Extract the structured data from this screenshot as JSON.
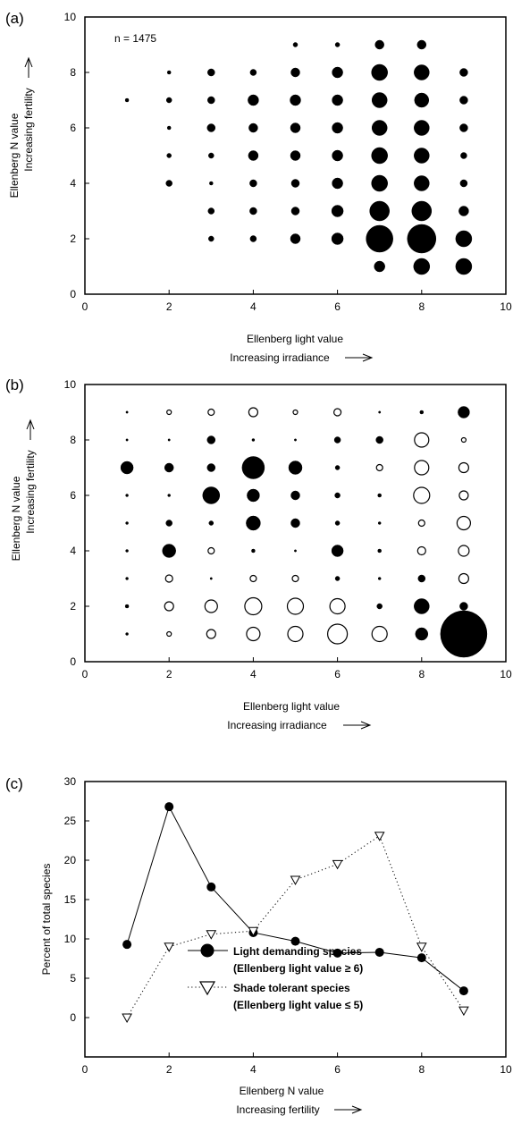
{
  "chart_data": [
    {
      "type": "scatter",
      "panel_label": "(a)",
      "annotation": "n = 1475",
      "xlabel": "Ellenberg light value",
      "xlabel2": "Increasing irradiance",
      "ylabel": "Ellenberg N value",
      "ylabel2": "Increasing fertility",
      "xlim": [
        0,
        10
      ],
      "ylim": [
        0,
        10
      ],
      "xticks": [
        "0",
        "2",
        "4",
        "6",
        "8",
        "10"
      ],
      "yticks": [
        "0",
        "2",
        "4",
        "6",
        "8",
        "10"
      ],
      "points": [
        {
          "x": 1,
          "y": 7,
          "size": 2,
          "fill": "filled"
        },
        {
          "x": 2,
          "y": 8,
          "size": 2,
          "fill": "filled"
        },
        {
          "x": 2,
          "y": 7,
          "size": 3,
          "fill": "filled"
        },
        {
          "x": 2,
          "y": 6,
          "size": 2,
          "fill": "filled"
        },
        {
          "x": 2,
          "y": 5,
          "size": 2.5,
          "fill": "filled"
        },
        {
          "x": 2,
          "y": 4,
          "size": 3.5,
          "fill": "filled"
        },
        {
          "x": 3,
          "y": 8,
          "size": 4,
          "fill": "filled"
        },
        {
          "x": 3,
          "y": 7,
          "size": 4,
          "fill": "filled"
        },
        {
          "x": 3,
          "y": 6,
          "size": 4.5,
          "fill": "filled"
        },
        {
          "x": 3,
          "y": 5,
          "size": 3,
          "fill": "filled"
        },
        {
          "x": 3,
          "y": 4,
          "size": 2,
          "fill": "filled"
        },
        {
          "x": 3,
          "y": 3,
          "size": 3.5,
          "fill": "filled"
        },
        {
          "x": 3,
          "y": 2,
          "size": 3,
          "fill": "filled"
        },
        {
          "x": 4,
          "y": 8,
          "size": 3.5,
          "fill": "filled"
        },
        {
          "x": 4,
          "y": 7,
          "size": 6,
          "fill": "filled"
        },
        {
          "x": 4,
          "y": 6,
          "size": 5,
          "fill": "filled"
        },
        {
          "x": 4,
          "y": 5,
          "size": 5.5,
          "fill": "filled"
        },
        {
          "x": 4,
          "y": 4,
          "size": 4,
          "fill": "filled"
        },
        {
          "x": 4,
          "y": 3,
          "size": 4,
          "fill": "filled"
        },
        {
          "x": 4,
          "y": 2,
          "size": 3.5,
          "fill": "filled"
        },
        {
          "x": 5,
          "y": 9,
          "size": 2.5,
          "fill": "filled"
        },
        {
          "x": 5,
          "y": 8,
          "size": 5,
          "fill": "filled"
        },
        {
          "x": 5,
          "y": 7,
          "size": 6,
          "fill": "filled"
        },
        {
          "x": 5,
          "y": 6,
          "size": 5.5,
          "fill": "filled"
        },
        {
          "x": 5,
          "y": 5,
          "size": 5.5,
          "fill": "filled"
        },
        {
          "x": 5,
          "y": 4,
          "size": 4.5,
          "fill": "filled"
        },
        {
          "x": 5,
          "y": 3,
          "size": 4.5,
          "fill": "filled"
        },
        {
          "x": 5,
          "y": 2,
          "size": 5.5,
          "fill": "filled"
        },
        {
          "x": 6,
          "y": 9,
          "size": 2.5,
          "fill": "filled"
        },
        {
          "x": 6,
          "y": 8,
          "size": 6,
          "fill": "filled"
        },
        {
          "x": 6,
          "y": 7,
          "size": 6,
          "fill": "filled"
        },
        {
          "x": 6,
          "y": 6,
          "size": 6,
          "fill": "filled"
        },
        {
          "x": 6,
          "y": 5,
          "size": 6,
          "fill": "filled"
        },
        {
          "x": 6,
          "y": 4,
          "size": 6,
          "fill": "filled"
        },
        {
          "x": 6,
          "y": 3,
          "size": 6.5,
          "fill": "filled"
        },
        {
          "x": 6,
          "y": 2,
          "size": 6.5,
          "fill": "filled"
        },
        {
          "x": 7,
          "y": 9,
          "size": 5,
          "fill": "filled"
        },
        {
          "x": 7,
          "y": 8,
          "size": 9,
          "fill": "filled"
        },
        {
          "x": 7,
          "y": 7,
          "size": 8.5,
          "fill": "filled"
        },
        {
          "x": 7,
          "y": 6,
          "size": 8.5,
          "fill": "filled"
        },
        {
          "x": 7,
          "y": 5,
          "size": 9,
          "fill": "filled"
        },
        {
          "x": 7,
          "y": 4,
          "size": 9,
          "fill": "filled"
        },
        {
          "x": 7,
          "y": 3,
          "size": 11,
          "fill": "filled"
        },
        {
          "x": 7,
          "y": 2,
          "size": 15,
          "fill": "filled"
        },
        {
          "x": 7,
          "y": 1,
          "size": 6,
          "fill": "filled"
        },
        {
          "x": 8,
          "y": 9,
          "size": 5,
          "fill": "filled"
        },
        {
          "x": 8,
          "y": 8,
          "size": 8.5,
          "fill": "filled"
        },
        {
          "x": 8,
          "y": 7,
          "size": 8,
          "fill": "filled"
        },
        {
          "x": 8,
          "y": 6,
          "size": 8.5,
          "fill": "filled"
        },
        {
          "x": 8,
          "y": 5,
          "size": 8.5,
          "fill": "filled"
        },
        {
          "x": 8,
          "y": 4,
          "size": 8.5,
          "fill": "filled"
        },
        {
          "x": 8,
          "y": 3,
          "size": 11,
          "fill": "filled"
        },
        {
          "x": 8,
          "y": 2,
          "size": 16,
          "fill": "filled"
        },
        {
          "x": 8,
          "y": 1,
          "size": 9,
          "fill": "filled"
        },
        {
          "x": 9,
          "y": 8,
          "size": 4.5,
          "fill": "filled"
        },
        {
          "x": 9,
          "y": 7,
          "size": 4.5,
          "fill": "filled"
        },
        {
          "x": 9,
          "y": 6,
          "size": 4.5,
          "fill": "filled"
        },
        {
          "x": 9,
          "y": 5,
          "size": 3.5,
          "fill": "filled"
        },
        {
          "x": 9,
          "y": 4,
          "size": 4,
          "fill": "filled"
        },
        {
          "x": 9,
          "y": 3,
          "size": 5.5,
          "fill": "filled"
        },
        {
          "x": 9,
          "y": 2,
          "size": 9,
          "fill": "filled"
        },
        {
          "x": 9,
          "y": 1,
          "size": 9,
          "fill": "filled"
        }
      ]
    },
    {
      "type": "scatter",
      "panel_label": "(b)",
      "xlabel": "Ellenberg light value",
      "xlabel2": "Increasing irradiance",
      "ylabel": "Ellenberg N value",
      "ylabel2": "Increasing fertility",
      "xlim": [
        0,
        10
      ],
      "ylim": [
        0,
        10
      ],
      "xticks": [
        "0",
        "2",
        "4",
        "6",
        "8",
        "10"
      ],
      "yticks": [
        "0",
        "2",
        "4",
        "6",
        "8",
        "10"
      ],
      "points": [
        {
          "x": 1,
          "y": 9,
          "size": 1.2,
          "fill": "filled"
        },
        {
          "x": 1,
          "y": 8,
          "size": 1.2,
          "fill": "filled"
        },
        {
          "x": 1,
          "y": 7,
          "size": 7,
          "fill": "filled"
        },
        {
          "x": 1,
          "y": 6,
          "size": 1.5,
          "fill": "filled"
        },
        {
          "x": 1,
          "y": 5,
          "size": 1.5,
          "fill": "filled"
        },
        {
          "x": 1,
          "y": 4,
          "size": 1.5,
          "fill": "filled"
        },
        {
          "x": 1,
          "y": 3,
          "size": 1.5,
          "fill": "filled"
        },
        {
          "x": 1,
          "y": 2,
          "size": 2,
          "fill": "filled"
        },
        {
          "x": 1,
          "y": 1,
          "size": 1.5,
          "fill": "filled"
        },
        {
          "x": 2,
          "y": 9,
          "size": 2.5,
          "fill": "open"
        },
        {
          "x": 2,
          "y": 8,
          "size": 1.2,
          "fill": "filled"
        },
        {
          "x": 2,
          "y": 7,
          "size": 5,
          "fill": "filled"
        },
        {
          "x": 2,
          "y": 6,
          "size": 1.5,
          "fill": "filled"
        },
        {
          "x": 2,
          "y": 5,
          "size": 3.5,
          "fill": "filled"
        },
        {
          "x": 2,
          "y": 4,
          "size": 7.5,
          "fill": "filled"
        },
        {
          "x": 2,
          "y": 3,
          "size": 4,
          "fill": "open"
        },
        {
          "x": 2,
          "y": 2,
          "size": 5,
          "fill": "open"
        },
        {
          "x": 2,
          "y": 1,
          "size": 2.5,
          "fill": "open"
        },
        {
          "x": 3,
          "y": 9,
          "size": 3.5,
          "fill": "open"
        },
        {
          "x": 3,
          "y": 8,
          "size": 4.5,
          "fill": "filled"
        },
        {
          "x": 3,
          "y": 7,
          "size": 4.5,
          "fill": "filled"
        },
        {
          "x": 3,
          "y": 6,
          "size": 9.5,
          "fill": "filled"
        },
        {
          "x": 3,
          "y": 5,
          "size": 2.5,
          "fill": "filled"
        },
        {
          "x": 3,
          "y": 4,
          "size": 3.5,
          "fill": "open"
        },
        {
          "x": 3,
          "y": 3,
          "size": 1.2,
          "fill": "filled"
        },
        {
          "x": 3,
          "y": 2,
          "size": 7,
          "fill": "open"
        },
        {
          "x": 3,
          "y": 1,
          "size": 5,
          "fill": "open"
        },
        {
          "x": 4,
          "y": 9,
          "size": 5,
          "fill": "open"
        },
        {
          "x": 4,
          "y": 8,
          "size": 1.5,
          "fill": "filled"
        },
        {
          "x": 4,
          "y": 7,
          "size": 12.5,
          "fill": "filled"
        },
        {
          "x": 4,
          "y": 6,
          "size": 7,
          "fill": "filled"
        },
        {
          "x": 4,
          "y": 5,
          "size": 8,
          "fill": "filled"
        },
        {
          "x": 4,
          "y": 4,
          "size": 2,
          "fill": "filled"
        },
        {
          "x": 4,
          "y": 3,
          "size": 3.5,
          "fill": "open"
        },
        {
          "x": 4,
          "y": 2,
          "size": 9.5,
          "fill": "open"
        },
        {
          "x": 4,
          "y": 1,
          "size": 7.5,
          "fill": "open"
        },
        {
          "x": 5,
          "y": 9,
          "size": 2.5,
          "fill": "open"
        },
        {
          "x": 5,
          "y": 8,
          "size": 1.2,
          "fill": "filled"
        },
        {
          "x": 5,
          "y": 7,
          "size": 7.5,
          "fill": "filled"
        },
        {
          "x": 5,
          "y": 6,
          "size": 5,
          "fill": "filled"
        },
        {
          "x": 5,
          "y": 5,
          "size": 5,
          "fill": "filled"
        },
        {
          "x": 5,
          "y": 4,
          "size": 1.2,
          "fill": "filled"
        },
        {
          "x": 5,
          "y": 3,
          "size": 3.5,
          "fill": "open"
        },
        {
          "x": 5,
          "y": 2,
          "size": 9,
          "fill": "open"
        },
        {
          "x": 5,
          "y": 1,
          "size": 8.5,
          "fill": "open"
        },
        {
          "x": 6,
          "y": 9,
          "size": 4,
          "fill": "open"
        },
        {
          "x": 6,
          "y": 8,
          "size": 3.5,
          "fill": "filled"
        },
        {
          "x": 6,
          "y": 7,
          "size": 2.5,
          "fill": "filled"
        },
        {
          "x": 6,
          "y": 6,
          "size": 3,
          "fill": "filled"
        },
        {
          "x": 6,
          "y": 5,
          "size": 2.5,
          "fill": "filled"
        },
        {
          "x": 6,
          "y": 4,
          "size": 6.5,
          "fill": "filled"
        },
        {
          "x": 6,
          "y": 3,
          "size": 2.5,
          "fill": "filled"
        },
        {
          "x": 6,
          "y": 2,
          "size": 8.5,
          "fill": "open"
        },
        {
          "x": 6,
          "y": 1,
          "size": 11,
          "fill": "open"
        },
        {
          "x": 7,
          "y": 9,
          "size": 1.2,
          "fill": "filled"
        },
        {
          "x": 7,
          "y": 8,
          "size": 4,
          "fill": "filled"
        },
        {
          "x": 7,
          "y": 7,
          "size": 3.5,
          "fill": "open"
        },
        {
          "x": 7,
          "y": 6,
          "size": 2,
          "fill": "filled"
        },
        {
          "x": 7,
          "y": 5,
          "size": 1.5,
          "fill": "filled"
        },
        {
          "x": 7,
          "y": 4,
          "size": 2,
          "fill": "filled"
        },
        {
          "x": 7,
          "y": 3,
          "size": 1.5,
          "fill": "filled"
        },
        {
          "x": 7,
          "y": 2,
          "size": 3,
          "fill": "filled"
        },
        {
          "x": 7,
          "y": 1,
          "size": 8.5,
          "fill": "open"
        },
        {
          "x": 8,
          "y": 9,
          "size": 2,
          "fill": "filled"
        },
        {
          "x": 8,
          "y": 8,
          "size": 8,
          "fill": "open"
        },
        {
          "x": 8,
          "y": 7,
          "size": 8,
          "fill": "open"
        },
        {
          "x": 8,
          "y": 6,
          "size": 9,
          "fill": "open"
        },
        {
          "x": 8,
          "y": 5,
          "size": 3.5,
          "fill": "open"
        },
        {
          "x": 8,
          "y": 4,
          "size": 4.5,
          "fill": "open"
        },
        {
          "x": 8,
          "y": 3,
          "size": 4,
          "fill": "filled"
        },
        {
          "x": 8,
          "y": 2,
          "size": 8.5,
          "fill": "filled"
        },
        {
          "x": 8,
          "y": 1,
          "size": 7,
          "fill": "filled"
        },
        {
          "x": 9,
          "y": 9,
          "size": 6.5,
          "fill": "filled"
        },
        {
          "x": 9,
          "y": 8,
          "size": 2.5,
          "fill": "open"
        },
        {
          "x": 9,
          "y": 7,
          "size": 5.5,
          "fill": "open"
        },
        {
          "x": 9,
          "y": 6,
          "size": 5,
          "fill": "open"
        },
        {
          "x": 9,
          "y": 5,
          "size": 7.5,
          "fill": "open"
        },
        {
          "x": 9,
          "y": 4,
          "size": 6,
          "fill": "open"
        },
        {
          "x": 9,
          "y": 3,
          "size": 5.5,
          "fill": "open"
        },
        {
          "x": 9,
          "y": 2,
          "size": 4.5,
          "fill": "filled"
        },
        {
          "x": 9,
          "y": 1,
          "size": 26,
          "fill": "filled"
        }
      ]
    },
    {
      "type": "line",
      "panel_label": "(c)",
      "xlabel": "Ellenberg N value",
      "xlabel2": "Increasing fertility",
      "ylabel": "Percent of total species",
      "xlim": [
        0,
        10
      ],
      "ylim": [
        -5,
        30
      ],
      "xticks": [
        "0",
        "2",
        "4",
        "6",
        "8",
        "10"
      ],
      "yticks": [
        "0",
        "5",
        "10",
        "15",
        "20",
        "25",
        "30"
      ],
      "x": [
        1,
        2,
        3,
        4,
        5,
        6,
        7,
        8,
        9
      ],
      "legend_placement": "lower-center",
      "series": [
        {
          "name": "Light demanding species",
          "name2": "(Ellenberg light value ≥ 6)",
          "marker": "filled-circle",
          "line_style": "solid",
          "values": [
            9.3,
            26.8,
            16.6,
            10.8,
            9.7,
            8.2,
            8.3,
            7.6,
            3.4
          ]
        },
        {
          "name": "Shade tolerant species",
          "name2": "(Ellenberg light value ≤ 5)",
          "marker": "open-triangle-down",
          "line_style": "dotted",
          "values": [
            0,
            9,
            10.6,
            11,
            17.5,
            19.5,
            23.1,
            9,
            0.9
          ]
        }
      ]
    }
  ]
}
